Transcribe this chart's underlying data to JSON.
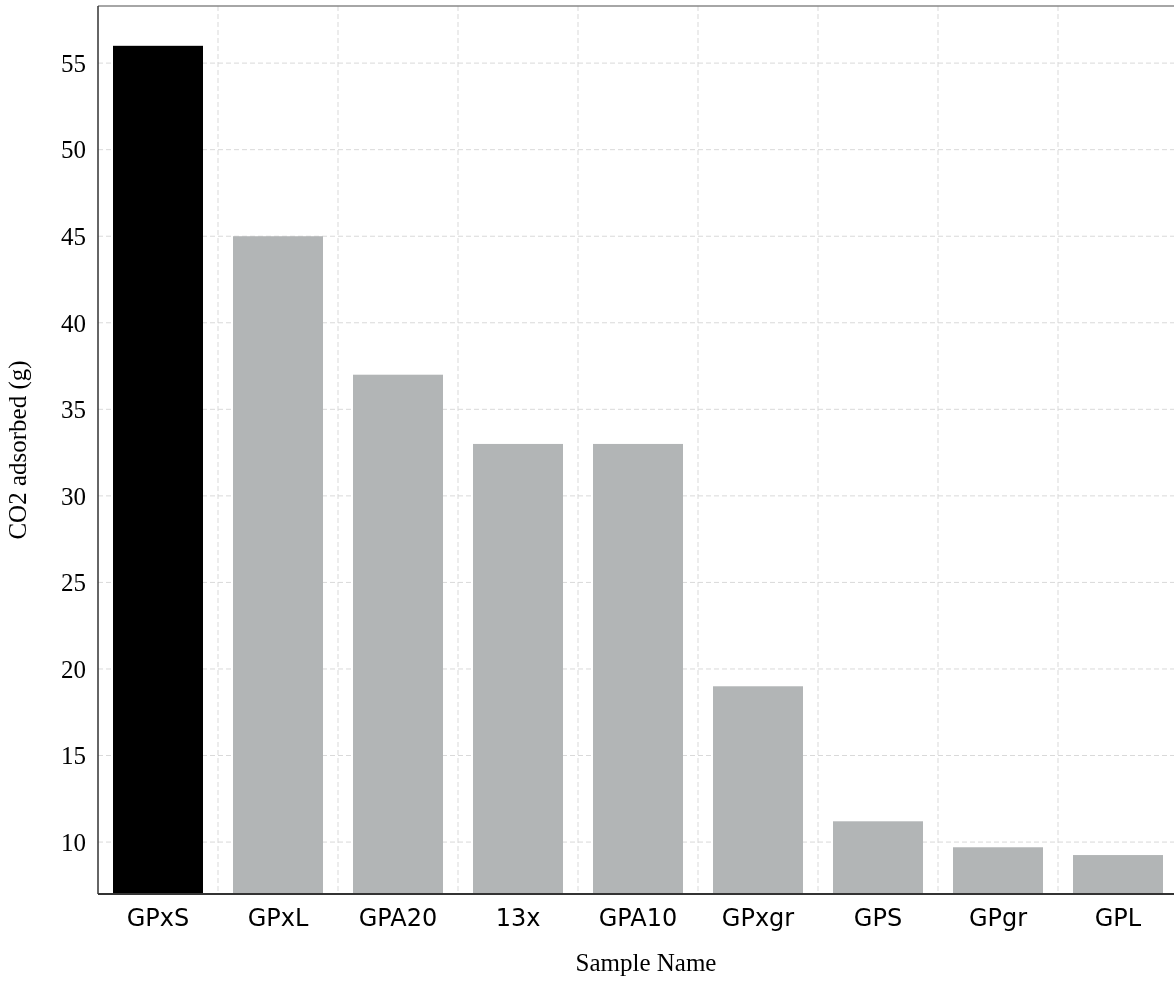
{
  "chart_data": {
    "type": "bar",
    "xlabel": "Sample Name",
    "ylabel": "CO2 adsorbed (g)",
    "categories": [
      "GPxS",
      "GPxL",
      "GPA20",
      "13x",
      "GPA10",
      "GPxgr",
      "GPS",
      "GPgr",
      "GPL"
    ],
    "values": [
      56,
      45,
      37,
      33,
      33,
      19,
      11.2,
      9.7,
      9.25
    ],
    "colors": [
      "#000000",
      "#b2b5b6",
      "#b2b5b6",
      "#b2b5b6",
      "#b2b5b6",
      "#b2b5b6",
      "#b2b5b6",
      "#b2b5b6",
      "#b2b5b6"
    ],
    "ylim": [
      7,
      58.3
    ],
    "yticks": [
      10,
      15,
      20,
      25,
      30,
      35,
      40,
      45,
      50,
      55
    ],
    "grid": true
  }
}
